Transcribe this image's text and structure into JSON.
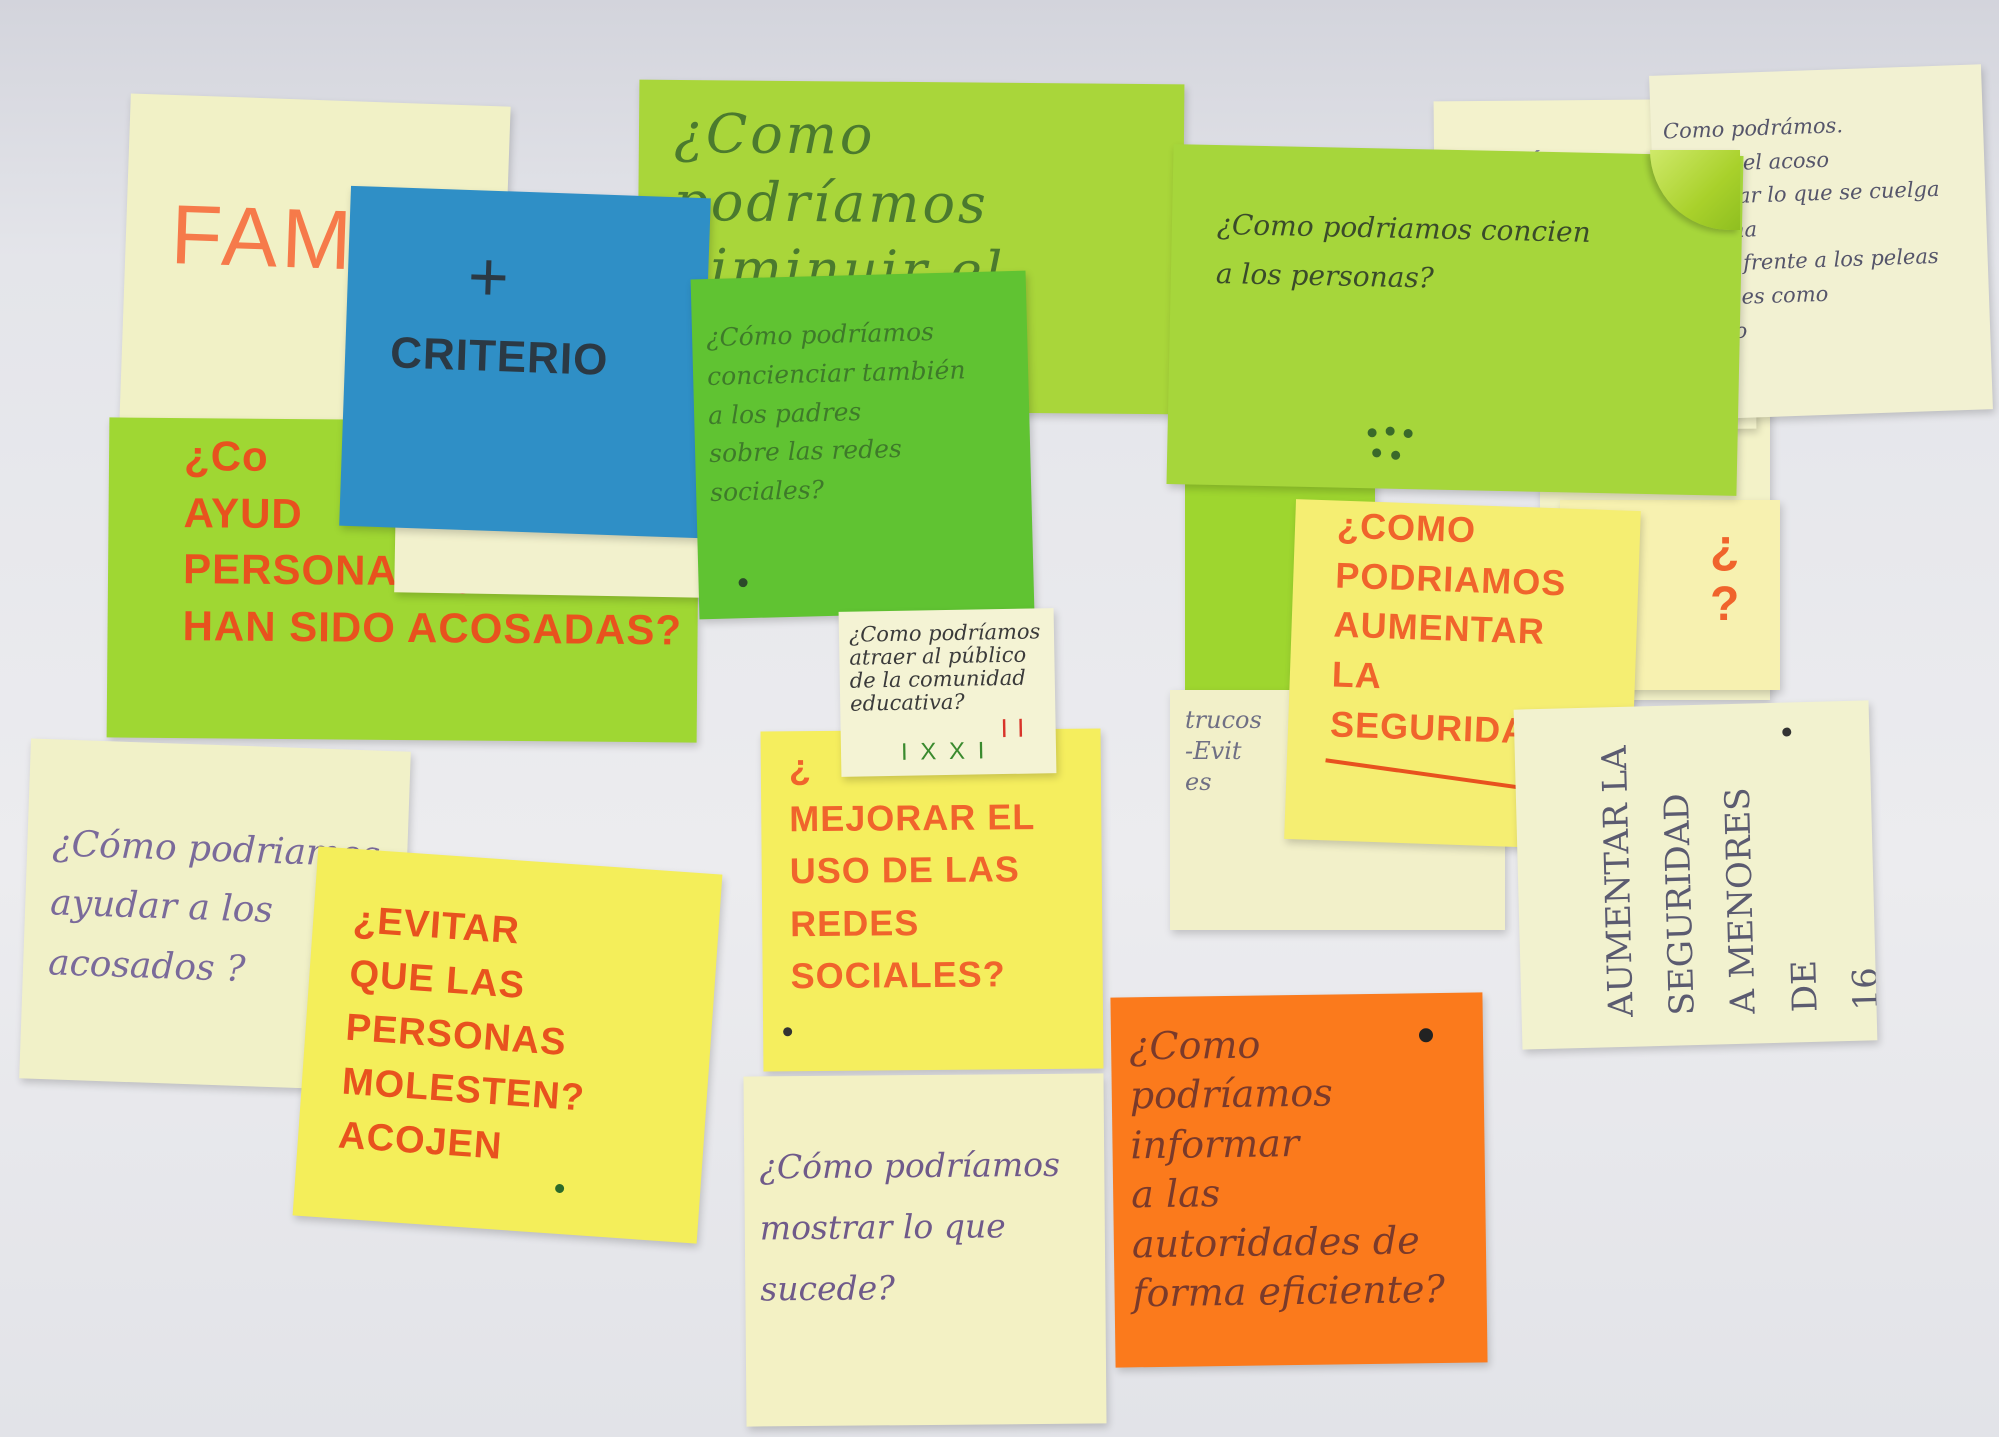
{
  "colors": {
    "pale_yellow": "#f2f2c2",
    "lime_green": "#9ed62f",
    "bright_green": "#62c432",
    "blue": "#2f8fc6",
    "yellow": "#f4ef60",
    "orange": "#fb7a1c",
    "marker_orange": "#f0642c",
    "pen_purple": "#7a6a9a"
  },
  "notes": {
    "familia": {
      "text": "FAMI"
    },
    "criterio": {
      "plus": "+",
      "text": "CRITERIO"
    },
    "ayudar": {
      "text": "¿Co\nAYUD\nPERSONAS QUE YA\nHAN SIDO ACOSADAS?"
    },
    "disminuir": {
      "text": "¿Como podríamos\ndiminuir el acoso?"
    },
    "concienciar_padres": {
      "text": "¿Cómo podríamos\nconcienciar también\na los padres\nsobre las redes\nsociales?"
    },
    "concienciar_personas": {
      "text": "¿Como podriamos concien\na los personas?"
    },
    "como_po": {
      "text": "¿Cómo po"
    },
    "evitar_acoso": {
      "text": "Como podrámos.\n-Evitar el acoso\n-Enseñar lo que se cuelga\nlo adena\nactuar frente a los peleas\nlas redes como\ndáctico"
    },
    "atraer": {
      "text": "¿Como podríamos\natraer al público\nde la comunidad\neducativa?",
      "votes": "I X X I",
      "votes2": "I I"
    },
    "mejorar": {
      "text": "¿\nMEJORAR EL\nUSO DE LAS\nREDES\nSOCIALES?"
    },
    "aumentar_seguridad": {
      "text": "¿COMO\nPODRIAMOS\nAUMENTAR\nLA\nSEGURIDAD?"
    },
    "trucos": {
      "text": "trucos\n-Evit\nes"
    },
    "aumentar_menores": {
      "text": "AUMENTAR LA\nSEGURIDAD\nA MENORES DE\n16"
    },
    "ayudar_acosados": {
      "text": "¿Cómo podriamos\nayudar a los\nacosados ?"
    },
    "evitar_molesten": {
      "text": "¿EVITAR\nQUE LAS\nPERSONAS\nMOLESTEN?\nACOJEN"
    },
    "mostrar": {
      "text": "¿Cómo podríamos\nmostrar lo que\nsucede?"
    },
    "informar": {
      "text": "¿Como\npodríamos\ninformar\na las\nautoridades de\nforma eficiente?"
    },
    "orange_partial": {
      "text": "¿\n?"
    }
  }
}
